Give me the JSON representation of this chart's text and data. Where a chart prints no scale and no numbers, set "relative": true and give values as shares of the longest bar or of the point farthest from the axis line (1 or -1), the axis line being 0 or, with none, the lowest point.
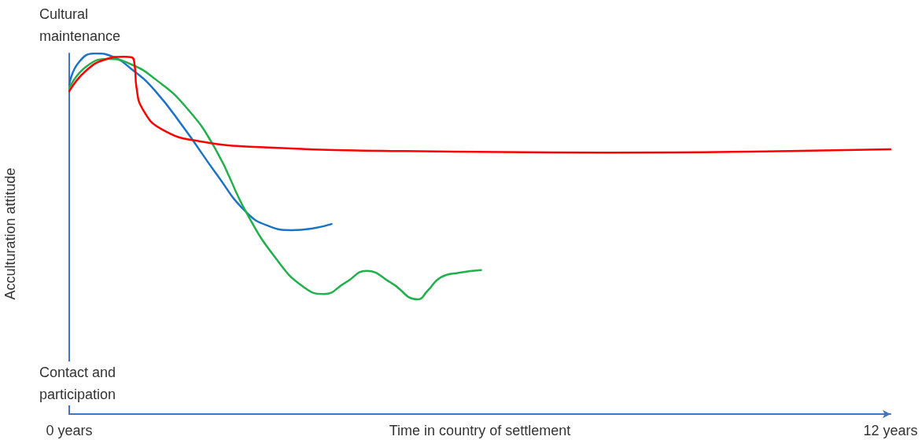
{
  "chart_data": {
    "type": "line",
    "relative": true,
    "xlabel": "Time in country of settlement",
    "ylabel": "Acculturation attitude",
    "annotations": [
      "Cultural maintenance",
      "Contact and participation"
    ],
    "xlim": [
      0,
      12
    ],
    "xticks": [
      {
        "value": 0,
        "label": "0 years"
      },
      {
        "value": 12,
        "label": "12 years"
      }
    ],
    "marker": "none",
    "line_style": "solid",
    "grid": false,
    "series": [
      {
        "color": "#1a73c5",
        "x": [
          0,
          0.134,
          0.379,
          0.635,
          0.914,
          1.248,
          1.693,
          2.139,
          2.585,
          2.92,
          3.254,
          3.588,
          3.833
        ],
        "values": [
          0.913,
          0.974,
          1,
          0.991,
          0.956,
          0.898,
          0.789,
          0.669,
          0.56,
          0.521,
          0.51,
          0.516,
          0.527
        ]
      },
      {
        "color": "#21b04b",
        "x": [
          0,
          0.245,
          0.579,
          0.914,
          1.248,
          1.693,
          2.139,
          2.585,
          3.03,
          3.42,
          3.721,
          4.033,
          4.345,
          4.702,
          5.092,
          5.237,
          5.426,
          5.705,
          6.017
        ],
        "values": [
          0.904,
          0.963,
          0.985,
          0.969,
          0.93,
          0.854,
          0.734,
          0.56,
          0.429,
          0.353,
          0.333,
          0.364,
          0.397,
          0.364,
          0.318,
          0.342,
          0.379,
          0.392,
          0.399
        ]
      },
      {
        "color": "#ff0000",
        "x": [
          0,
          0.245,
          0.524,
          0.802,
          0.914,
          0.958,
          0.981,
          1.081,
          1.359,
          1.916,
          2.919,
          4.591,
          7.933,
          10.162,
          12
        ],
        "values": [
          0.895,
          0.952,
          0.983,
          0.991,
          0.989,
          0.963,
          0.908,
          0.843,
          0.789,
          0.756,
          0.739,
          0.73,
          0.725,
          0.728,
          0.734
        ]
      }
    ]
  }
}
